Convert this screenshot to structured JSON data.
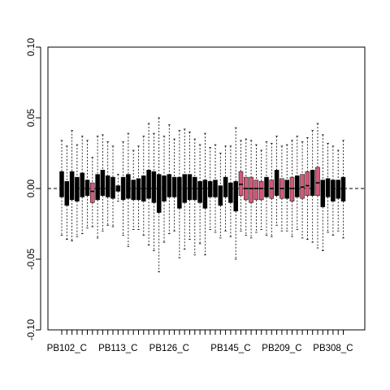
{
  "chart_data": {
    "type": "box",
    "title": "",
    "xlabel": "",
    "ylabel": "",
    "ylim": [
      -0.1,
      0.1
    ],
    "y_ticks": [
      -0.1,
      -0.05,
      0.0,
      0.05,
      0.1
    ],
    "y_tick_labels": [
      "-0.10",
      "-0.05",
      "0.00",
      "0.05",
      "0.10"
    ],
    "reference_line": 0.0,
    "x_tick_labels": [
      "PB102_C",
      "PB113_C",
      "PB126_C",
      "PB145_C",
      "PB209_C",
      "PB308_C"
    ],
    "x_tick_label_positions": [
      1,
      11,
      21,
      33,
      43,
      53
    ],
    "colors": {
      "group_a": "#000000",
      "group_b": "#d05a78",
      "whisker": "#000000",
      "reference_line": "#000000"
    },
    "boxes": [
      {
        "q1": -0.006,
        "median": 0.0,
        "q3": 0.012,
        "lo": -0.033,
        "hi": 0.034,
        "group": "group_a"
      },
      {
        "q1": -0.012,
        "median": -0.002,
        "q3": 0.005,
        "lo": -0.036,
        "hi": 0.03,
        "group": "group_a"
      },
      {
        "q1": -0.008,
        "median": 0.0,
        "q3": 0.012,
        "lo": -0.037,
        "hi": 0.041,
        "group": "group_a"
      },
      {
        "q1": -0.009,
        "median": 0.001,
        "q3": 0.008,
        "lo": -0.034,
        "hi": 0.031,
        "group": "group_a"
      },
      {
        "q1": -0.006,
        "median": 0.001,
        "q3": 0.011,
        "lo": -0.032,
        "hi": 0.037,
        "group": "group_a"
      },
      {
        "q1": -0.005,
        "median": 0.001,
        "q3": 0.006,
        "lo": -0.028,
        "hi": 0.034,
        "group": "group_a"
      },
      {
        "q1": -0.01,
        "median": -0.002,
        "q3": 0.004,
        "lo": -0.027,
        "hi": 0.022,
        "group": "group_b"
      },
      {
        "q1": -0.008,
        "median": 0.001,
        "q3": 0.01,
        "lo": -0.035,
        "hi": 0.037,
        "group": "group_a"
      },
      {
        "q1": -0.005,
        "median": 0.002,
        "q3": 0.013,
        "lo": -0.03,
        "hi": 0.038,
        "group": "group_a"
      },
      {
        "q1": -0.006,
        "median": 0.001,
        "q3": 0.009,
        "lo": -0.026,
        "hi": 0.033,
        "group": "group_a"
      },
      {
        "q1": -0.007,
        "median": 0.0,
        "q3": 0.008,
        "lo": -0.027,
        "hi": 0.03,
        "group": "group_a"
      },
      {
        "q1": -0.002,
        "median": 0.0,
        "q3": 0.002,
        "lo": -0.009,
        "hi": 0.01,
        "group": "group_a"
      },
      {
        "q1": -0.008,
        "median": 0.001,
        "q3": 0.008,
        "lo": -0.033,
        "hi": 0.033,
        "group": "group_a"
      },
      {
        "q1": -0.007,
        "median": 0.001,
        "q3": 0.01,
        "lo": -0.041,
        "hi": 0.039,
        "group": "group_a"
      },
      {
        "q1": -0.008,
        "median": 0.0,
        "q3": 0.006,
        "lo": -0.029,
        "hi": 0.027,
        "group": "group_a"
      },
      {
        "q1": -0.008,
        "median": 0.0,
        "q3": 0.007,
        "lo": -0.029,
        "hi": 0.03,
        "group": "group_a"
      },
      {
        "q1": -0.009,
        "median": 0.001,
        "q3": 0.009,
        "lo": -0.033,
        "hi": 0.037,
        "group": "group_a"
      },
      {
        "q1": -0.007,
        "median": 0.002,
        "q3": 0.013,
        "lo": -0.04,
        "hi": 0.046,
        "group": "group_a"
      },
      {
        "q1": -0.01,
        "median": 0.001,
        "q3": 0.012,
        "lo": -0.044,
        "hi": 0.039,
        "group": "group_a"
      },
      {
        "q1": -0.017,
        "median": 0.001,
        "q3": 0.01,
        "lo": -0.059,
        "hi": 0.05,
        "group": "group_a"
      },
      {
        "q1": -0.009,
        "median": 0.001,
        "q3": 0.009,
        "lo": -0.038,
        "hi": 0.037,
        "group": "group_a"
      },
      {
        "q1": -0.006,
        "median": 0.001,
        "q3": 0.01,
        "lo": -0.032,
        "hi": 0.045,
        "group": "group_a"
      },
      {
        "q1": -0.006,
        "median": 0.001,
        "q3": 0.008,
        "lo": -0.03,
        "hi": 0.035,
        "group": "group_a"
      },
      {
        "q1": -0.014,
        "median": 0.0,
        "q3": 0.008,
        "lo": -0.049,
        "hi": 0.041,
        "group": "group_a"
      },
      {
        "q1": -0.01,
        "median": 0.001,
        "q3": 0.01,
        "lo": -0.043,
        "hi": 0.042,
        "group": "group_a"
      },
      {
        "q1": -0.008,
        "median": 0.001,
        "q3": 0.01,
        "lo": -0.036,
        "hi": 0.04,
        "group": "group_a"
      },
      {
        "q1": -0.008,
        "median": 0.001,
        "q3": 0.008,
        "lo": -0.047,
        "hi": 0.035,
        "group": "group_a"
      },
      {
        "q1": -0.01,
        "median": 0.0,
        "q3": 0.005,
        "lo": -0.039,
        "hi": 0.031,
        "group": "group_a"
      },
      {
        "q1": -0.014,
        "median": 0.001,
        "q3": 0.006,
        "lo": -0.047,
        "hi": 0.039,
        "group": "group_a"
      },
      {
        "q1": -0.006,
        "median": 0.0,
        "q3": 0.005,
        "lo": -0.029,
        "hi": 0.029,
        "group": "group_a"
      },
      {
        "q1": -0.006,
        "median": 0.0,
        "q3": 0.006,
        "lo": -0.031,
        "hi": 0.031,
        "group": "group_a"
      },
      {
        "q1": -0.012,
        "median": 0.0,
        "q3": 0.002,
        "lo": -0.035,
        "hi": 0.025,
        "group": "group_a"
      },
      {
        "q1": -0.006,
        "median": 0.0,
        "q3": 0.008,
        "lo": -0.03,
        "hi": 0.03,
        "group": "group_a"
      },
      {
        "q1": -0.01,
        "median": 0.0,
        "q3": 0.004,
        "lo": -0.034,
        "hi": 0.03,
        "group": "group_a"
      },
      {
        "q1": -0.016,
        "median": 0.0,
        "q3": 0.005,
        "lo": -0.05,
        "hi": 0.043,
        "group": "group_a"
      },
      {
        "q1": -0.005,
        "median": 0.003,
        "q3": 0.012,
        "lo": -0.03,
        "hi": 0.034,
        "group": "group_b"
      },
      {
        "q1": -0.008,
        "median": 0.0,
        "q3": 0.008,
        "lo": -0.033,
        "hi": 0.035,
        "group": "group_b"
      },
      {
        "q1": -0.01,
        "median": 0.0,
        "q3": 0.008,
        "lo": -0.035,
        "hi": 0.034,
        "group": "group_b"
      },
      {
        "q1": -0.008,
        "median": 0.0,
        "q3": 0.006,
        "lo": -0.031,
        "hi": 0.031,
        "group": "group_b"
      },
      {
        "q1": -0.008,
        "median": 0.0,
        "q3": 0.005,
        "lo": -0.029,
        "hi": 0.027,
        "group": "group_b"
      },
      {
        "q1": -0.006,
        "median": 0.001,
        "q3": 0.008,
        "lo": -0.033,
        "hi": 0.033,
        "group": "group_a"
      },
      {
        "q1": -0.007,
        "median": 0.0,
        "q3": 0.006,
        "lo": -0.034,
        "hi": 0.032,
        "group": "group_b"
      },
      {
        "q1": -0.005,
        "median": 0.003,
        "q3": 0.013,
        "lo": -0.026,
        "hi": 0.037,
        "group": "group_a"
      },
      {
        "q1": -0.007,
        "median": 0.0,
        "q3": 0.007,
        "lo": -0.03,
        "hi": 0.03,
        "group": "group_b"
      },
      {
        "q1": -0.007,
        "median": 0.0,
        "q3": 0.006,
        "lo": -0.03,
        "hi": 0.031,
        "group": "group_a"
      },
      {
        "q1": -0.009,
        "median": 0.0,
        "q3": 0.008,
        "lo": -0.034,
        "hi": 0.034,
        "group": "group_b"
      },
      {
        "q1": -0.006,
        "median": 0.001,
        "q3": 0.009,
        "lo": -0.029,
        "hi": 0.037,
        "group": "group_a"
      },
      {
        "q1": -0.007,
        "median": 0.001,
        "q3": 0.01,
        "lo": -0.035,
        "hi": 0.033,
        "group": "group_b"
      },
      {
        "q1": -0.005,
        "median": 0.002,
        "q3": 0.012,
        "lo": -0.036,
        "hi": 0.036,
        "group": "group_b"
      },
      {
        "q1": -0.005,
        "median": 0.003,
        "q3": 0.013,
        "lo": -0.038,
        "hi": 0.041,
        "group": "group_a"
      },
      {
        "q1": -0.005,
        "median": 0.004,
        "q3": 0.015,
        "lo": -0.042,
        "hi": 0.046,
        "group": "group_b"
      },
      {
        "q1": -0.013,
        "median": 0.0,
        "q3": 0.006,
        "lo": -0.044,
        "hi": 0.038,
        "group": "group_a"
      },
      {
        "q1": -0.006,
        "median": 0.001,
        "q3": 0.007,
        "lo": -0.031,
        "hi": 0.032,
        "group": "group_a"
      },
      {
        "q1": -0.009,
        "median": 0.0,
        "q3": 0.006,
        "lo": -0.033,
        "hi": 0.03,
        "group": "group_a"
      },
      {
        "q1": -0.007,
        "median": 0.0,
        "q3": 0.006,
        "lo": -0.03,
        "hi": 0.027,
        "group": "group_a"
      },
      {
        "q1": -0.009,
        "median": 0.0,
        "q3": 0.008,
        "lo": -0.035,
        "hi": 0.034,
        "group": "group_a"
      }
    ]
  }
}
